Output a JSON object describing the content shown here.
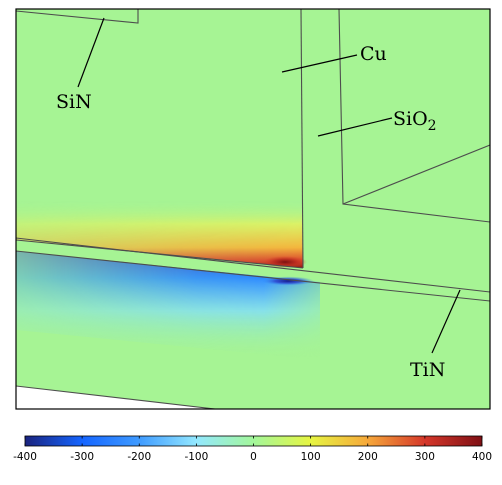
{
  "labels": {
    "sin": "SiN",
    "cu": "Cu",
    "sio2_base": "SiO",
    "sio2_sub": "2",
    "tin": "TiN"
  },
  "colorbar": {
    "min": -400,
    "max": 400,
    "ticks": [
      "-400",
      "-300",
      "-200",
      "-100",
      "0",
      "100",
      "200",
      "300",
      "400"
    ],
    "colors": [
      "#1a237e",
      "#1565ff",
      "#3f9bff",
      "#93e8ff",
      "#a3f79b",
      "#e6f542",
      "#f6a83a",
      "#d5372a",
      "#7f1015"
    ]
  },
  "colors": {
    "background": "#a6f494",
    "outline": "#4d4d4d"
  }
}
